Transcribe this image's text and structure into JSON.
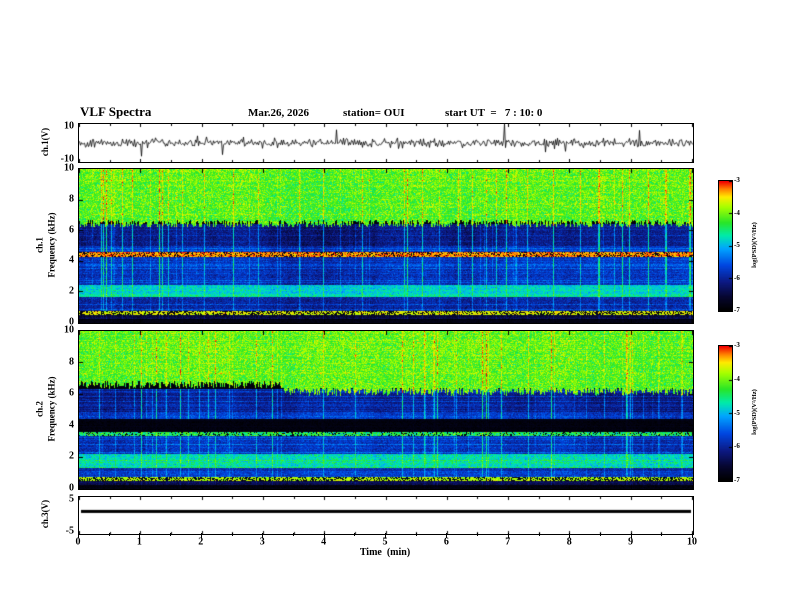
{
  "header": {
    "title": "VLF Spectra",
    "date": "Mar.26, 2026",
    "station": "station= OUI",
    "start_ut": "start UT  =   7 : 10: 0"
  },
  "x_axis": {
    "label": "Time  (min)",
    "min": 0,
    "max": 10,
    "major_ticks": [
      "0",
      "1",
      "2",
      "3",
      "4",
      "5",
      "6",
      "7",
      "8",
      "9",
      "10"
    ]
  },
  "colorbar": {
    "label": "log(PSD)(V²/Hz)",
    "ticks": [
      "-3",
      "-4",
      "-5",
      "-6",
      "-7"
    ],
    "zmin": -7,
    "zmax": -3
  },
  "panels": {
    "ch1_wave": {
      "ylabel": "ch.1(V)",
      "ytick_top": "10",
      "ytick_bottom": "-10",
      "ymin": -10,
      "ymax": 10
    },
    "ch1_spec": {
      "ylabel_ch": "ch.1",
      "ylabel_freq": "Frequency (kHz)",
      "yticks": [
        "10",
        "8",
        "6",
        "4",
        "2",
        "0"
      ]
    },
    "ch2_spec": {
      "ylabel_ch": "ch.2",
      "ylabel_freq": "Frequency (kHz)",
      "yticks": [
        "10",
        "8",
        "6",
        "4",
        "2",
        "0"
      ]
    },
    "ch3_wave": {
      "ylabel": "ch.3(V)",
      "ytick_top": "5",
      "ytick_bottom": "-5",
      "ymin": -5,
      "ymax": 5
    }
  },
  "colormap_stops": [
    [
      0.0,
      0,
      0,
      0
    ],
    [
      0.1,
      6,
      6,
      45
    ],
    [
      0.22,
      12,
      25,
      130
    ],
    [
      0.35,
      0,
      70,
      225
    ],
    [
      0.48,
      0,
      165,
      255
    ],
    [
      0.58,
      0,
      235,
      170
    ],
    [
      0.68,
      40,
      230,
      40
    ],
    [
      0.8,
      165,
      255,
      0
    ],
    [
      0.88,
      255,
      235,
      0
    ],
    [
      0.94,
      255,
      130,
      0
    ],
    [
      1.0,
      240,
      0,
      0
    ]
  ],
  "chart_data": [
    {
      "id": "ch1_wave",
      "type": "line",
      "title": "ch.1 voltage waveform",
      "xlim": [
        0,
        10
      ],
      "ylim": [
        -10,
        10
      ],
      "xlabel": "Time (min)",
      "ylabel": "ch.1(V)",
      "description": "Dense black noise trace centred on 0 V, roughly ±1.5 V ripple with sporadic impulsive spikes reaching about ±9 V across the full 10 minute record",
      "noise_amp_v": 1.4,
      "spike_prob": 0.025,
      "spike_amp_v": 9,
      "seed": 42
    },
    {
      "id": "ch1_spec",
      "type": "heatmap",
      "title": "ch.1 VLF spectrogram",
      "xlim": [
        0,
        10
      ],
      "ylim": [
        0,
        10
      ],
      "zlim": [
        -7,
        -3
      ],
      "xlabel": "Time (min)",
      "ylabel": "ch.1 Frequency (kHz)",
      "zlabel": "log(PSD)(V²/Hz)",
      "fmin": 0,
      "fmax": 10,
      "description": "Broadband green/yellow noise with red flecks above ~6.5 kHz crossed by vertical impulsive streaks; dark blue/black 5-6.5 kHz; maroon-red interference band near 4.3-4.6 kHz; striped dark blue 2.5-4.3 kHz; green horizontal band near 1.7-2.4 kHz; dark red line near 0.6 kHz; black below 0.3 kHz",
      "bands": [
        {
          "f0": 6.45,
          "f1": 10.01,
          "base": -4.25,
          "noise": 0.5,
          "stripe": 0.25,
          "burst": 0.55,
          "jitter": 0.5
        },
        {
          "f0": 5.0,
          "f1": 6.45,
          "base": -6.35,
          "noise": 0.28,
          "stripe": 0.55,
          "burst": 1.1
        },
        {
          "f0": 4.62,
          "f1": 5.0,
          "base": -6.0,
          "noise": 0.3,
          "stripe": 0.5,
          "burst": 0.95
        },
        {
          "f0": 4.3,
          "f1": 4.62,
          "base": -3.35,
          "noise": 0.3,
          "stripe": 0.2,
          "burst": 0.1,
          "mix": 0.72
        },
        {
          "f0": 2.45,
          "f1": 4.3,
          "base": -6.05,
          "noise": 0.3,
          "stripe": 0.6,
          "burst": 0.95
        },
        {
          "f0": 1.7,
          "f1": 2.45,
          "base": -4.95,
          "noise": 0.35,
          "stripe": 0.45,
          "burst": 0.45
        },
        {
          "f0": 0.8,
          "f1": 1.7,
          "base": -6.1,
          "noise": 0.3,
          "stripe": 0.5,
          "burst": 0.6
        },
        {
          "f0": 0.55,
          "f1": 0.8,
          "base": -3.7,
          "noise": 0.3,
          "stripe": 0.2,
          "burst": 0.1,
          "mix": 0.6
        },
        {
          "f0": 0.28,
          "f1": 0.55,
          "base": -6.6,
          "noise": 0.2,
          "stripe": 0.3,
          "burst": 0.25
        },
        {
          "f0": -0.1,
          "f1": 0.28,
          "base": -6.9,
          "noise": 0.1,
          "stripe": 0.1,
          "burst": 0.05
        }
      ],
      "seed": 1234
    },
    {
      "id": "ch2_spec",
      "type": "heatmap",
      "title": "ch.2 VLF spectrogram",
      "xlim": [
        0,
        10
      ],
      "ylim": [
        0,
        10
      ],
      "zlim": [
        -7,
        -3
      ],
      "xlabel": "Time (min)",
      "ylabel": "ch.2 Frequency (kHz)",
      "zlabel": "log(PSD)(V²/Hz)",
      "fmin": 0,
      "fmax": 10,
      "description": "Similar to ch.1: green/yellow broadband noise above ~6.3 kHz whose lower edge steps down near t=3.3 min; dark 4.9-6.3 kHz; intermittent orange band near 3.5 kHz; striped dark blue 2.2-3.3 kHz; cyan-green band 1.4-2.2 kHz; dark red line near 0.6 kHz; black below 0.25 kHz",
      "bands": [
        {
          "f0": 6.3,
          "f1": 10.01,
          "base": -4.2,
          "noise": 0.5,
          "stripe": 0.25,
          "burst": 0.55,
          "jitter": 0.5,
          "step": {
            "t": 0.33,
            "before": 6.6,
            "after": 6.15
          }
        },
        {
          "f0": 4.9,
          "f1": 6.3,
          "base": -6.3,
          "noise": 0.28,
          "stripe": 0.55,
          "burst": 1.1
        },
        {
          "f0": 4.45,
          "f1": 4.9,
          "base": -5.9,
          "noise": 0.3,
          "stripe": 0.5,
          "burst": 0.95
        },
        {
          "f0": 3.35,
          "f1": 3.6,
          "base": -4.5,
          "noise": 0.6,
          "stripe": 0.35,
          "burst": 0.4,
          "mix": 0.8
        },
        {
          "f0": 2.2,
          "f1": 3.35,
          "base": -6.0,
          "noise": 0.3,
          "stripe": 0.55,
          "burst": 0.9
        },
        {
          "f0": 1.35,
          "f1": 2.2,
          "base": -4.85,
          "noise": 0.4,
          "stripe": 0.4,
          "burst": 0.5
        },
        {
          "f0": 0.75,
          "f1": 1.35,
          "base": -6.0,
          "noise": 0.3,
          "stripe": 0.5,
          "burst": 0.6
        },
        {
          "f0": 0.5,
          "f1": 0.75,
          "base": -3.8,
          "noise": 0.3,
          "stripe": 0.2,
          "burst": 0.1,
          "mix": 0.6
        },
        {
          "f0": 0.25,
          "f1": 0.5,
          "base": -6.5,
          "noise": 0.2,
          "stripe": 0.3,
          "burst": 0.25
        },
        {
          "f0": -0.1,
          "f1": 0.25,
          "base": -6.9,
          "noise": 0.1,
          "stripe": 0.1,
          "burst": 0.05
        }
      ],
      "seed": 5678
    },
    {
      "id": "ch3_wave",
      "type": "line",
      "title": "ch.3 voltage waveform",
      "xlim": [
        0,
        10
      ],
      "ylim": [
        -5,
        5
      ],
      "xlabel": "Time (min)",
      "ylabel": "ch.3(V)",
      "description": "Flat thick black trace at a constant level of about +1 V for the entire record",
      "constant_value_v": 1.1
    }
  ]
}
